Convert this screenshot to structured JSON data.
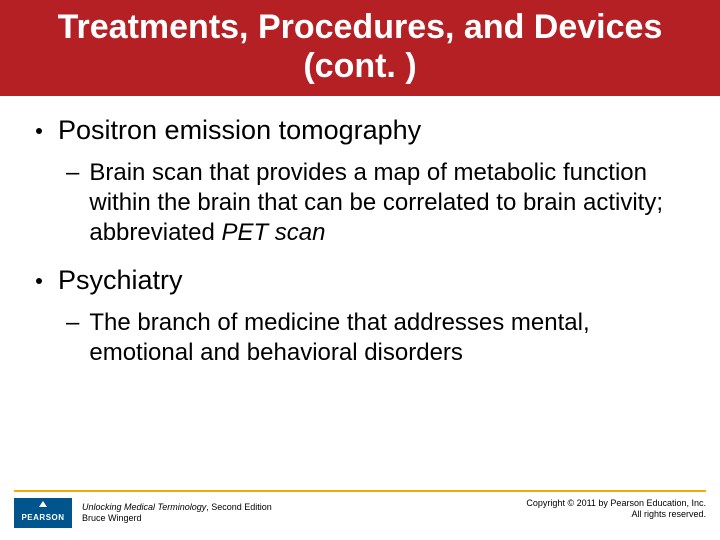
{
  "colors": {
    "title_bg": "#b52025",
    "title_text": "#ffffff",
    "body_text": "#000000",
    "bullet": "#000000",
    "footer_line": "#f2a900",
    "logo_bg": "#00558c",
    "footer_text": "#000000"
  },
  "fonts": {
    "title_size": 34,
    "l1_size": 27,
    "l2_size": 24,
    "footer_size": 9
  },
  "title": "Treatments, Procedures, and Devices (cont. )",
  "items": [
    {
      "label": "Positron emission tomography",
      "sub": {
        "plain": "Brain scan that provides a map of metabolic function within the brain that can be correlated to brain activity; abbreviated ",
        "italic": "PET scan"
      }
    },
    {
      "label": "Psychiatry",
      "sub": {
        "plain": "The branch of medicine that addresses mental, emotional and behavioral disorders",
        "italic": ""
      }
    }
  ],
  "footer": {
    "logo": "PEARSON",
    "book_title": "Unlocking Medical Terminology",
    "edition": ", Second Edition",
    "author": "Bruce Wingerd",
    "copyright_line1": "Copyright © 2011 by Pearson Education, Inc.",
    "copyright_line2": "All rights reserved."
  }
}
